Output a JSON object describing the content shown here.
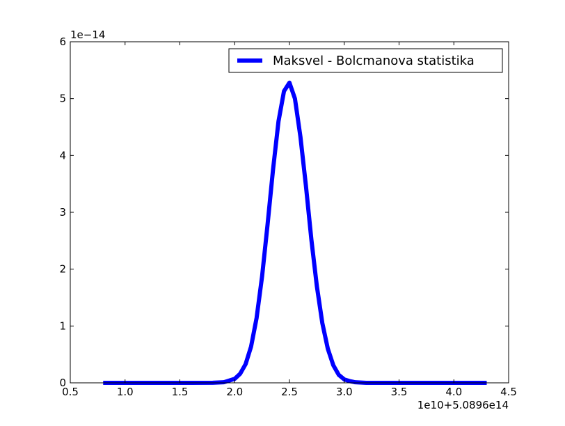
{
  "chart_data": {
    "type": "line",
    "title": "",
    "xlabel": "",
    "ylabel": "",
    "x_offset_label": "1e10+5.0896e14",
    "y_offset_label": "1e−14",
    "xlim": [
      0.5,
      4.5
    ],
    "ylim": [
      0,
      6
    ],
    "x_ticks": [
      0.5,
      1.0,
      1.5,
      2.0,
      2.5,
      3.0,
      3.5,
      4.0,
      4.5
    ],
    "x_tick_labels": [
      "0.5",
      "1.0",
      "1.5",
      "2.0",
      "2.5",
      "3.0",
      "3.5",
      "4.0",
      "4.5"
    ],
    "y_ticks": [
      0,
      1,
      2,
      3,
      4,
      5,
      6
    ],
    "y_tick_labels": [
      "0",
      "1",
      "2",
      "3",
      "4",
      "5",
      "6"
    ],
    "grid": false,
    "legend_position": "top-right",
    "series": [
      {
        "name": "Maksvel - Bolcmanova statistika",
        "color": "#0000ff",
        "x": [
          0.8,
          1.0,
          1.2,
          1.4,
          1.6,
          1.8,
          1.9,
          2.0,
          2.05,
          2.1,
          2.15,
          2.2,
          2.25,
          2.3,
          2.35,
          2.4,
          2.45,
          2.5,
          2.55,
          2.6,
          2.65,
          2.7,
          2.75,
          2.8,
          2.85,
          2.9,
          2.95,
          3.0,
          3.05,
          3.1,
          3.2,
          3.4,
          3.6,
          3.8,
          4.0,
          4.3
        ],
        "y": [
          0.0,
          0.0,
          0.0,
          0.0,
          0.0,
          0.002,
          0.01,
          0.07,
          0.16,
          0.33,
          0.64,
          1.14,
          1.87,
          2.78,
          3.75,
          4.6,
          5.13,
          5.28,
          5.0,
          4.33,
          3.47,
          2.52,
          1.7,
          1.05,
          0.6,
          0.31,
          0.14,
          0.06,
          0.03,
          0.01,
          0.0,
          0.0,
          0.0,
          0.0,
          0.0,
          0.0
        ]
      }
    ]
  }
}
